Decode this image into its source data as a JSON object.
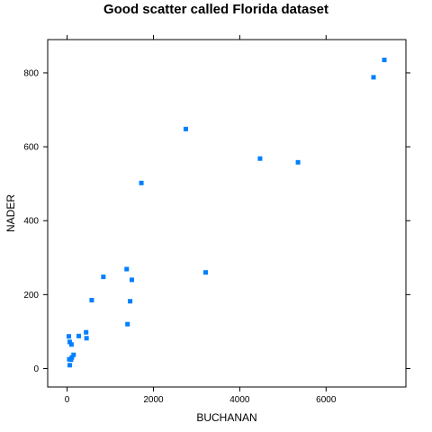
{
  "chart_data": {
    "type": "scatter",
    "title": "Good scatter called Florida dataset",
    "xlabel": "BUCHANAN",
    "ylabel": "NADER",
    "xlim": [
      -450,
      7850
    ],
    "ylim": [
      -50,
      890
    ],
    "xticks": [
      0,
      2000,
      4000,
      6000
    ],
    "yticks": [
      0,
      200,
      400,
      600,
      800
    ],
    "tick_labels_x": [
      "0",
      "2000",
      "4000",
      "6000"
    ],
    "tick_labels_y": [
      "0",
      "200",
      "400",
      "600",
      "800"
    ],
    "grid": false,
    "marker_color": "#0080ff",
    "points": [
      {
        "x": 7350,
        "y": 835
      },
      {
        "x": 7100,
        "y": 788
      },
      {
        "x": 2750,
        "y": 648
      },
      {
        "x": 4470,
        "y": 568
      },
      {
        "x": 5350,
        "y": 558
      },
      {
        "x": 1720,
        "y": 502
      },
      {
        "x": 1380,
        "y": 269
      },
      {
        "x": 3210,
        "y": 260
      },
      {
        "x": 840,
        "y": 248
      },
      {
        "x": 1500,
        "y": 240
      },
      {
        "x": 570,
        "y": 185
      },
      {
        "x": 1460,
        "y": 182
      },
      {
        "x": 1400,
        "y": 120
      },
      {
        "x": 440,
        "y": 98
      },
      {
        "x": 270,
        "y": 88
      },
      {
        "x": 40,
        "y": 87
      },
      {
        "x": 450,
        "y": 82
      },
      {
        "x": 60,
        "y": 72
      },
      {
        "x": 100,
        "y": 65
      },
      {
        "x": 150,
        "y": 37
      },
      {
        "x": 110,
        "y": 30
      },
      {
        "x": 50,
        "y": 25
      },
      {
        "x": 90,
        "y": 24
      },
      {
        "x": 60,
        "y": 9
      }
    ]
  }
}
